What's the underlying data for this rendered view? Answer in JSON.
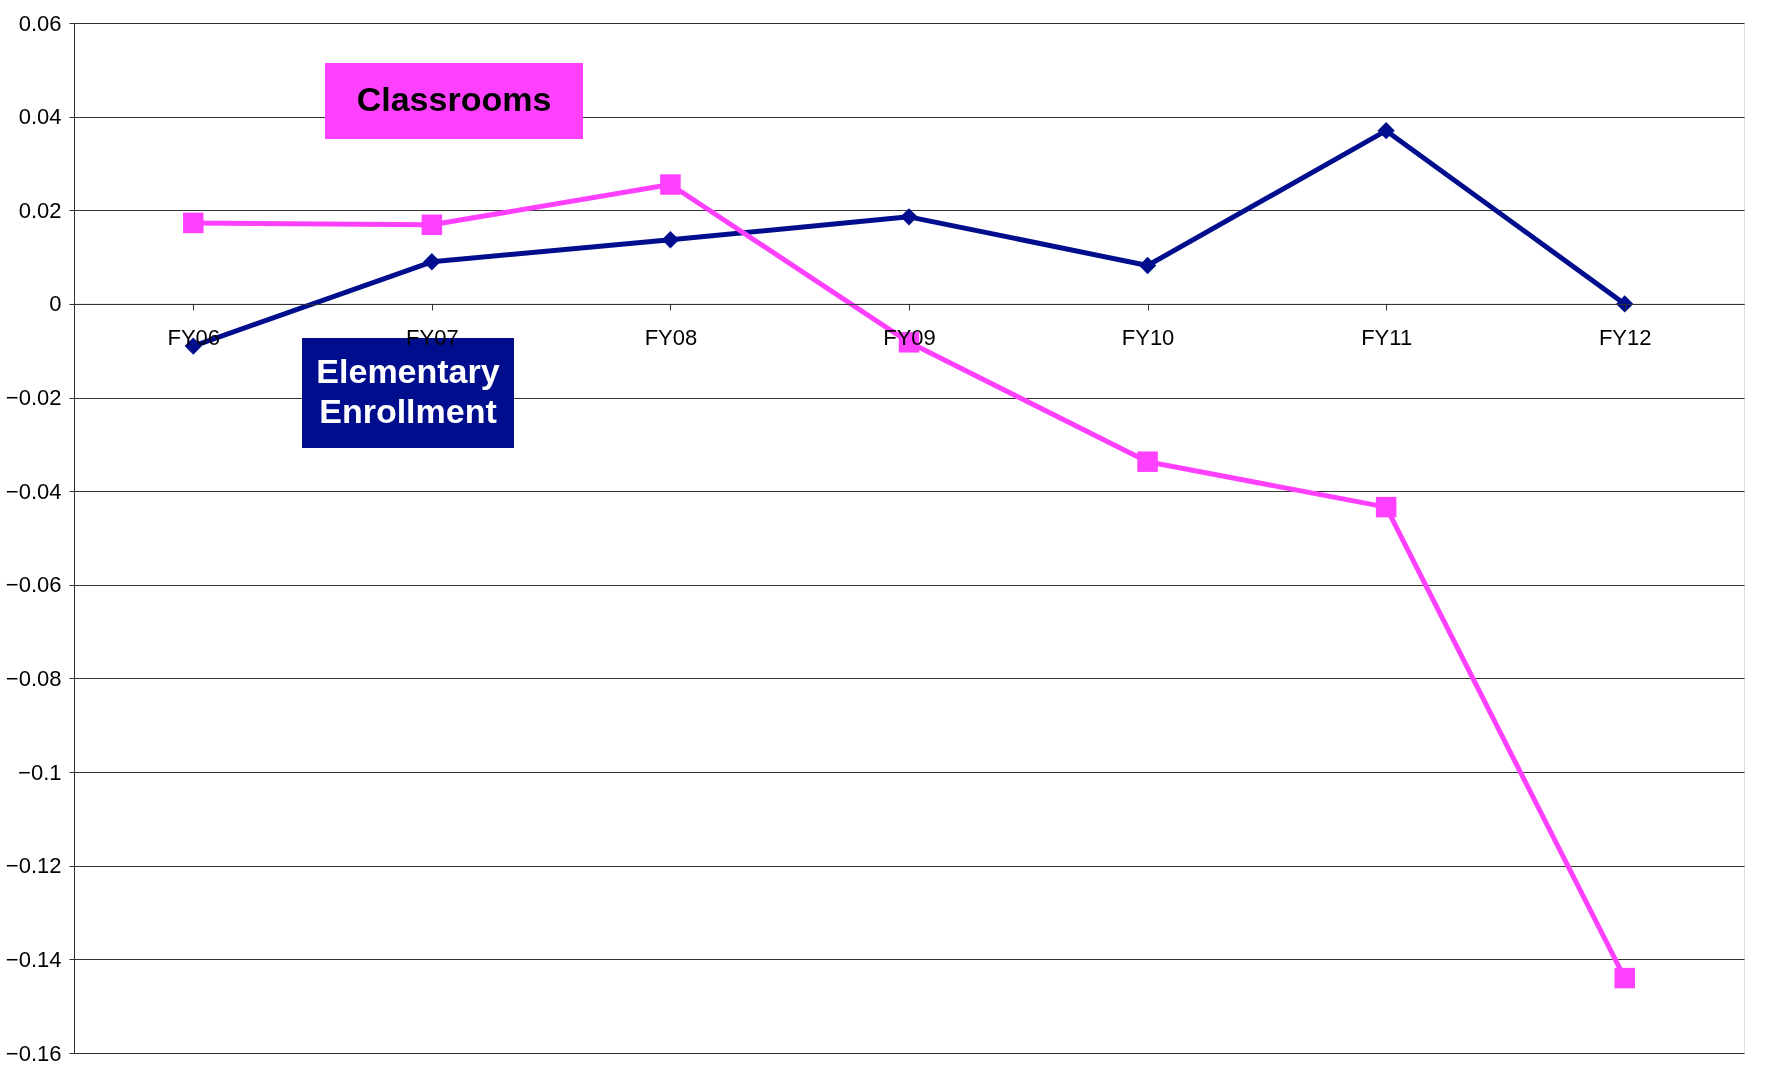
{
  "chart_data": {
    "type": "line",
    "categories": [
      "FY06",
      "FY07",
      "FY08",
      "FY09",
      "FY10",
      "FY11",
      "FY12"
    ],
    "series": [
      {
        "name": "Elementary Enrollment",
        "color": "#000e8e",
        "marker": "diamond",
        "values": [
          -0.009,
          0.009,
          0.0137,
          0.0186,
          0.0082,
          0.037,
          0.0
        ]
      },
      {
        "name": "Classrooms",
        "color": "#ff40ff",
        "marker": "square",
        "values": [
          0.0173,
          0.0169,
          0.0255,
          -0.0082,
          -0.0337,
          -0.0434,
          -0.144
        ]
      }
    ],
    "ylim": [
      -0.16,
      0.06
    ],
    "yticks": [
      -0.16,
      -0.14,
      -0.12,
      -0.1,
      -0.08,
      -0.06,
      -0.04,
      -0.02,
      0,
      0.02,
      0.04,
      0.06
    ],
    "grid": "y",
    "line_style": "solid"
  }
}
